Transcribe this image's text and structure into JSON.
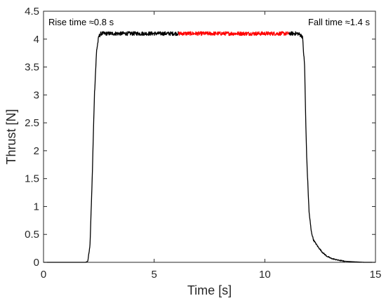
{
  "chart_data": {
    "type": "line",
    "xlabel": "Time [s]",
    "ylabel": "Thrust [N]",
    "xlim": [
      0,
      15
    ],
    "ylim": [
      0,
      4.5
    ],
    "xticks": [
      0,
      5,
      10,
      15
    ],
    "yticks": [
      0,
      0.5,
      1,
      1.5,
      2,
      2.5,
      3,
      3.5,
      4,
      4.5
    ],
    "grid": false,
    "annotations": [
      {
        "text": "Rise time ≈0.8 s",
        "anchor": "top-left"
      },
      {
        "text": "Fall time ≈1.4 s",
        "anchor": "top-right"
      }
    ],
    "series": [
      {
        "color": "#000000",
        "x": [
          0,
          1.9,
          2.0,
          2.1,
          2.2,
          2.3,
          2.4,
          2.5,
          2.6,
          2.7,
          2.8,
          3.0,
          4.0,
          5.0,
          6.0,
          6.1
        ],
        "y": [
          0,
          0,
          0.02,
          0.3,
          1.5,
          3.0,
          3.8,
          4.05,
          4.1,
          4.1,
          4.1,
          4.1,
          4.1,
          4.1,
          4.1,
          4.1
        ]
      },
      {
        "color": "#ff0000",
        "x": [
          6.1,
          7.0,
          8.0,
          9.0,
          10.0,
          11.1
        ],
        "y": [
          4.1,
          4.1,
          4.1,
          4.1,
          4.1,
          4.1
        ]
      },
      {
        "color": "#000000",
        "x": [
          11.1,
          11.5,
          11.7,
          11.8,
          11.85,
          11.9,
          12.0,
          12.1,
          12.2,
          12.4,
          12.6,
          12.8,
          13.0,
          13.3,
          13.6,
          14.0,
          14.5,
          15.0
        ],
        "y": [
          4.1,
          4.1,
          4.05,
          3.5,
          2.5,
          1.8,
          0.9,
          0.55,
          0.4,
          0.28,
          0.18,
          0.11,
          0.07,
          0.04,
          0.02,
          0.01,
          0,
          0
        ]
      }
    ]
  }
}
